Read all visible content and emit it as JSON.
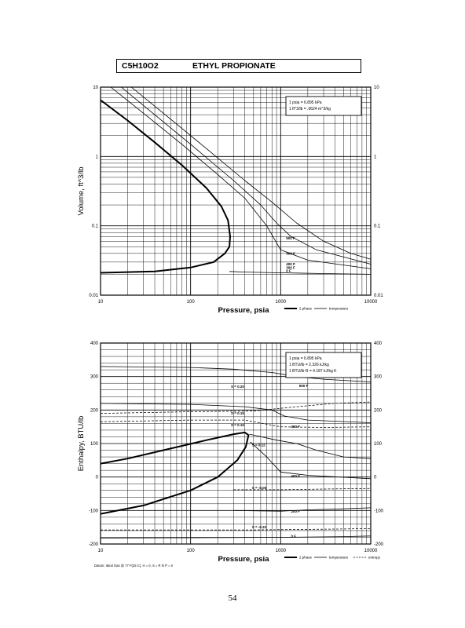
{
  "page": {
    "title_formula": "C5H10O2",
    "title_name": "ETHYL PROPIONATE",
    "page_number": "54"
  },
  "colors": {
    "ink": "#000000",
    "paper": "#ffffff"
  },
  "chart_data": [
    {
      "type": "line",
      "xscale": "log",
      "yscale": "log",
      "xlim": [
        10,
        10000
      ],
      "ylim": [
        0.01,
        10
      ],
      "xlabel": "Pressure,  psia",
      "ylabel": "Volume, ft^3/lb",
      "xticks": [
        10,
        100,
        1000,
        10000
      ],
      "xtick_labels": [
        "10",
        "100",
        "1000",
        "10000"
      ],
      "yticks": [
        0.01,
        0.1,
        1,
        10
      ],
      "ytick_labels": [
        "0.01",
        "0.1",
        "1",
        "10"
      ],
      "grid": true,
      "info_box": [
        "1 psia  =  6.895 kPa",
        "1 ft^3/lb  =  .0624 m^3/kg"
      ],
      "legend": {
        "position": "bottom-right",
        "items": [
          {
            "label": "2 phase",
            "style": "thick"
          },
          {
            "label": "temperature",
            "style": "thin"
          }
        ]
      },
      "series": [
        {
          "kind": "two-phase",
          "points": [
            [
              10,
              6.5
            ],
            [
              20,
              3.3
            ],
            [
              40,
              1.6
            ],
            [
              80,
              0.75
            ],
            [
              150,
              0.35
            ],
            [
              220,
              0.19
            ],
            [
              260,
              0.12
            ],
            [
              275,
              0.07
            ],
            [
              270,
              0.05
            ],
            [
              240,
              0.04
            ],
            [
              180,
              0.03
            ],
            [
              100,
              0.025
            ],
            [
              40,
              0.022
            ],
            [
              10,
              0.021
            ]
          ]
        },
        {
          "kind": "isotherm",
          "points": [
            [
              270,
              0.022
            ],
            [
              400,
              0.0215
            ],
            [
              1000,
              0.021
            ],
            [
              3000,
              0.0205
            ],
            [
              10000,
              0.02
            ]
          ]
        },
        {
          "kind": "isotherm",
          "points": [
            [
              13,
              10
            ],
            [
              30,
              4.2
            ],
            [
              80,
              1.5
            ],
            [
              200,
              0.55
            ],
            [
              400,
              0.25
            ],
            [
              700,
              0.1
            ],
            [
              1000,
              0.045
            ],
            [
              2000,
              0.032
            ],
            [
              10000,
              0.024
            ]
          ]
        },
        {
          "kind": "isotherm",
          "points": [
            [
              17,
              10
            ],
            [
              40,
              4
            ],
            [
              100,
              1.5
            ],
            [
              300,
              0.45
            ],
            [
              600,
              0.2
            ],
            [
              900,
              0.11
            ],
            [
              1300,
              0.07
            ],
            [
              2500,
              0.045
            ],
            [
              10000,
              0.028
            ]
          ]
        },
        {
          "kind": "isotherm",
          "points": [
            [
              22,
              10
            ],
            [
              50,
              4.2
            ],
            [
              150,
              1.3
            ],
            [
              400,
              0.45
            ],
            [
              800,
              0.22
            ],
            [
              1500,
              0.11
            ],
            [
              3000,
              0.06
            ],
            [
              6000,
              0.04
            ],
            [
              10000,
              0.033
            ]
          ]
        }
      ],
      "annotations": [
        {
          "text": "500 F",
          "x": 1150,
          "y": 0.066
        },
        {
          "text": "300 F",
          "x": 1150,
          "y": 0.04
        },
        {
          "text": "400 F",
          "x": 1150,
          "y": 0.028
        },
        {
          "text": "300 F",
          "x": 1150,
          "y": 0.025
        },
        {
          "text": "0 F",
          "x": 1150,
          "y": 0.0225
        }
      ]
    },
    {
      "type": "line",
      "xscale": "log",
      "yscale": "linear",
      "xlim": [
        10,
        10000
      ],
      "ylim": [
        -200,
        400
      ],
      "xlabel": "Pressure,  psia",
      "ylabel": "Enthalpy, BTU/lb",
      "xticks": [
        10,
        100,
        1000,
        10000
      ],
      "xtick_labels": [
        "10",
        "100",
        "1000",
        "10000"
      ],
      "yticks": [
        -200,
        -100,
        0,
        100,
        200,
        300,
        400
      ],
      "ytick_labels": [
        "-200",
        "-100",
        "0",
        "100",
        "200",
        "300",
        "400"
      ],
      "grid": true,
      "info_box": [
        "1 psia  =  6.895 kPa",
        "1 BTU/lb  =  2.326 kJ/kg",
        "1 BTU/lb R  =  4.187 kJ/kg K"
      ],
      "footnote": "Datum: Ideal Gas @ 77 F(25 C),  H  =  0,  S  =  R ln P  =  0",
      "legend": {
        "position": "bottom-right",
        "items": [
          {
            "label": "2 phase",
            "style": "thick"
          },
          {
            "label": "temperature",
            "style": "thin"
          },
          {
            "label": "entropy",
            "style": "dashed"
          }
        ]
      },
      "series": [
        {
          "kind": "two-phase",
          "points": [
            [
              10,
              -110
            ],
            [
              30,
              -85
            ],
            [
              100,
              -40
            ],
            [
              200,
              0
            ],
            [
              330,
              50
            ],
            [
              410,
              90
            ],
            [
              440,
              125
            ],
            [
              400,
              133
            ],
            [
              300,
              128
            ],
            [
              150,
              110
            ],
            [
              50,
              80
            ],
            [
              20,
              55
            ],
            [
              10,
              40
            ]
          ]
        },
        {
          "kind": "isotherm",
          "points": [
            [
              10,
              330
            ],
            [
              100,
              327
            ],
            [
              300,
              322
            ],
            [
              800,
              312
            ],
            [
              1500,
              300
            ],
            [
              3000,
              292
            ],
            [
              10000,
              284
            ]
          ]
        },
        {
          "kind": "isotherm",
          "points": [
            [
              10,
              220
            ],
            [
              100,
              217
            ],
            [
              400,
              210
            ],
            [
              800,
              200
            ],
            [
              1100,
              182
            ],
            [
              2000,
              170
            ],
            [
              10000,
              162
            ]
          ]
        },
        {
          "kind": "isotherm",
          "points": [
            [
              450,
              128
            ],
            [
              900,
              110
            ],
            [
              1500,
              100
            ],
            [
              2500,
              80
            ],
            [
              5000,
              60
            ],
            [
              10000,
              55
            ]
          ]
        },
        {
          "kind": "isotherm",
          "points": [
            [
              460,
              105
            ],
            [
              700,
              60
            ],
            [
              1000,
              15
            ],
            [
              2000,
              5
            ],
            [
              10000,
              -5
            ]
          ]
        },
        {
          "kind": "isotherm",
          "points": [
            [
              300,
              -100
            ],
            [
              1000,
              -102
            ],
            [
              2000,
              -98
            ],
            [
              5000,
              -95
            ],
            [
              10000,
              -92
            ]
          ]
        },
        {
          "kind": "isotherm",
          "points": [
            [
              10,
              -182
            ],
            [
              200,
              -181
            ],
            [
              1000,
              -180
            ],
            [
              5000,
              -178
            ],
            [
              10000,
              -176
            ]
          ]
        },
        {
          "kind": "entropy",
          "points": [
            [
              10,
              190
            ],
            [
              100,
              195
            ],
            [
              500,
              197
            ],
            [
              1500,
              210
            ],
            [
              4000,
              220
            ],
            [
              10000,
              224
            ]
          ]
        },
        {
          "kind": "entropy",
          "points": [
            [
              10,
              165
            ],
            [
              100,
              170
            ],
            [
              400,
              170
            ],
            [
              1000,
              150
            ],
            [
              3000,
              148
            ],
            [
              10000,
              150
            ]
          ]
        },
        {
          "kind": "entropy",
          "points": [
            [
              300,
              -38
            ],
            [
              1000,
              -38
            ],
            [
              3000,
              -36
            ],
            [
              10000,
              -34
            ]
          ]
        },
        {
          "kind": "entropy",
          "points": [
            [
              10,
              -158
            ],
            [
              500,
              -158
            ],
            [
              3000,
              -156
            ],
            [
              10000,
              -154
            ]
          ]
        }
      ],
      "annotations": [
        {
          "text": "S = 0.20",
          "x": 280,
          "y": 270
        },
        {
          "text": "S = 0.15",
          "x": 280,
          "y": 190
        },
        {
          "text": "S = 0.10",
          "x": 280,
          "y": 155
        },
        {
          "text": "S = 0.12",
          "x": 480,
          "y": 95
        },
        {
          "text": "S = -0.05",
          "x": 480,
          "y": -32
        },
        {
          "text": "S = -0.22",
          "x": 480,
          "y": -150
        },
        {
          "text": "500 F",
          "x": 1600,
          "y": 272
        },
        {
          "text": "300 F",
          "x": 1300,
          "y": 150
        },
        {
          "text": "400 F",
          "x": 1300,
          "y": 3
        },
        {
          "text": "200 F",
          "x": 1300,
          "y": -103
        },
        {
          "text": "0 F",
          "x": 1300,
          "y": -176
        }
      ]
    }
  ]
}
